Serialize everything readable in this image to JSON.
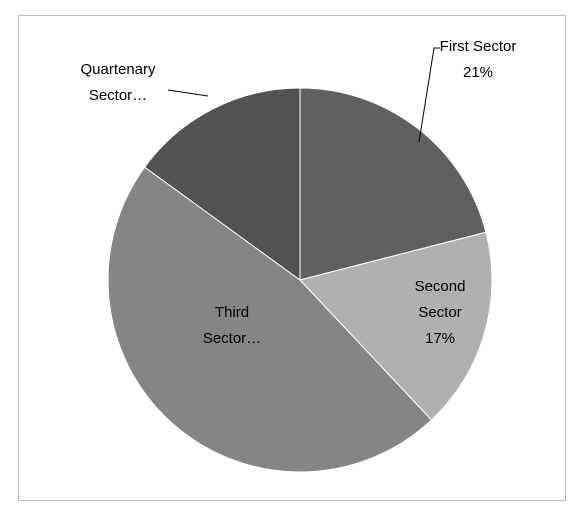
{
  "chart_data": {
    "type": "pie",
    "categories": [
      "First Sector",
      "Second Sector",
      "Third Sector…",
      "Quartenary Sector…"
    ],
    "values": [
      21,
      17,
      47,
      15
    ],
    "value_labels": [
      "21%",
      "17%",
      null,
      null
    ],
    "colors": [
      "#606060",
      "#b0b0b0",
      "#858585",
      "#525252"
    ]
  }
}
